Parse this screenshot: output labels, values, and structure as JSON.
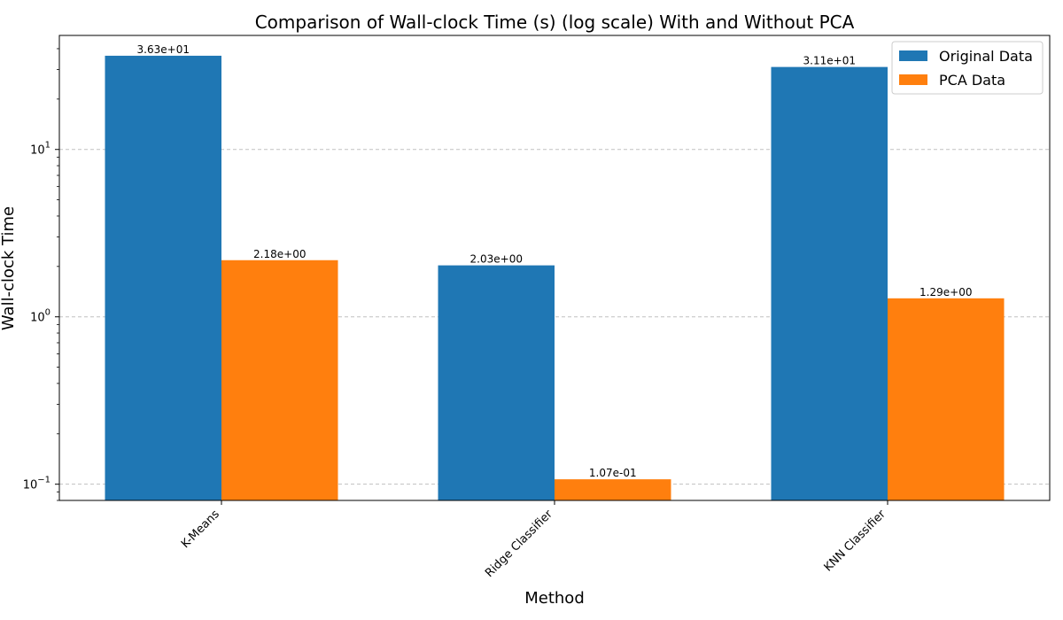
{
  "chart_data": {
    "type": "bar",
    "title": "Comparison of Wall-clock Time (s) (log scale) With and Without PCA",
    "xlabel": "Method",
    "ylabel": "Wall-clock Time",
    "yscale": "log",
    "ylim": [
      0.08,
      48
    ],
    "categories": [
      "K-Means",
      "Ridge Classifier",
      "KNN Classifier"
    ],
    "series": [
      {
        "name": "Original Data",
        "color": "#1f77b4",
        "values": [
          36.3,
          2.03,
          31.1
        ],
        "labels": [
          "3.63e+01",
          "2.03e+00",
          "3.11e+01"
        ]
      },
      {
        "name": "PCA Data",
        "color": "#ff7f0e",
        "values": [
          2.18,
          0.107,
          1.29
        ],
        "labels": [
          "2.18e+00",
          "1.07e-01",
          "1.29e+00"
        ]
      }
    ],
    "yticks": [
      {
        "value": 0.1,
        "base": "10",
        "exp": "−1"
      },
      {
        "value": 1,
        "base": "10",
        "exp": "0"
      },
      {
        "value": 10,
        "base": "10",
        "exp": "1"
      }
    ],
    "grid": "y-dashed",
    "legend_position": "top-right"
  }
}
